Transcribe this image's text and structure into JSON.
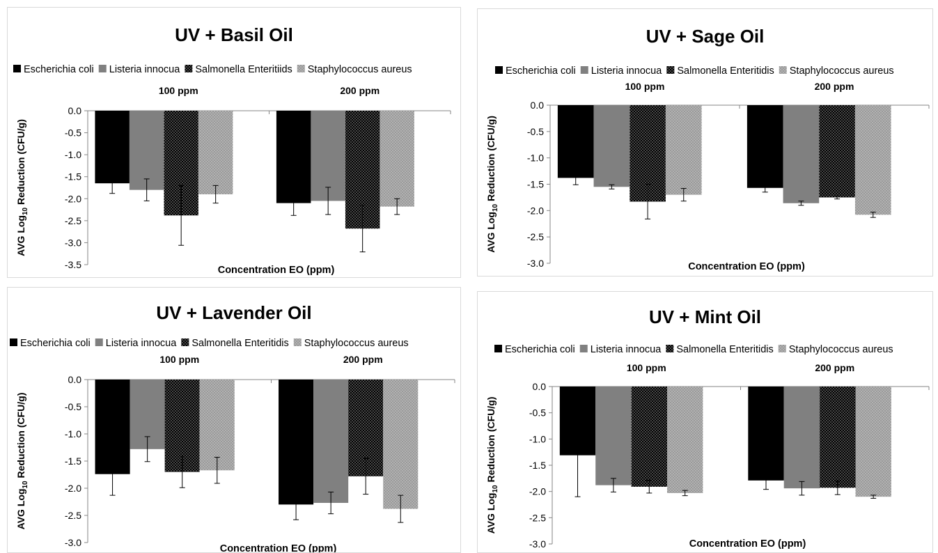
{
  "colors": {
    "escherichia": "#000000",
    "listeria": "#808080",
    "salmonella_pattern": "black background with white dots",
    "staphylococcus_pattern": "grey background with light dots",
    "axis": "#868686"
  },
  "chart_data": [
    {
      "type": "bar",
      "title": "UV + Basil Oil",
      "xlabel": "Concentration EO (ppm)",
      "ylabel_pre": "AVG Log",
      "ylabel_sub": "10",
      "ylabel_post": " Reduction (CFU/g)",
      "categories": [
        "100 ppm",
        "200 ppm"
      ],
      "ylim": [
        -3.5,
        0
      ],
      "ticks": [
        "0.0",
        "-0.5",
        "-1.0",
        "-1.5",
        "-2.0",
        "-2.5",
        "-3.0",
        "-3.5"
      ],
      "legend_position": "top",
      "series": [
        {
          "name": "Escherichia coli",
          "values": [
            -1.65,
            -2.1
          ],
          "errors": [
            0.23,
            0.28
          ]
        },
        {
          "name": "Listeria innocua",
          "values": [
            -1.8,
            -2.05
          ],
          "errors": [
            0.25,
            0.31
          ]
        },
        {
          "name": "Salmonella Enteritiids",
          "values": [
            -2.38,
            -2.68
          ],
          "errors": [
            0.68,
            0.53
          ]
        },
        {
          "name": "Staphylococcus aureus",
          "values": [
            -1.9,
            -2.18
          ],
          "errors": [
            0.2,
            0.18
          ]
        }
      ]
    },
    {
      "type": "bar",
      "title": "UV + Sage Oil",
      "xlabel": "Concentration EO (ppm)",
      "ylabel_pre": "AVG Log",
      "ylabel_sub": "10",
      "ylabel_post": " Reduction (CFU/g)",
      "categories": [
        "100 ppm",
        "200 ppm"
      ],
      "ylim": [
        -3.0,
        0
      ],
      "ticks": [
        "0.0",
        "-0.5",
        "-1.0",
        "-1.5",
        "-2.0",
        "-2.5",
        "-3.0"
      ],
      "legend_position": "top",
      "series": [
        {
          "name": "Escherichia coli",
          "values": [
            -1.38,
            -1.57
          ],
          "errors": [
            0.13,
            0.08
          ]
        },
        {
          "name": "Listeria innocua",
          "values": [
            -1.55,
            -1.86
          ],
          "errors": [
            0.04,
            0.04
          ]
        },
        {
          "name": "Salmonella Enteritidis",
          "values": [
            -1.83,
            -1.75
          ],
          "errors": [
            0.33,
            0.03
          ]
        },
        {
          "name": "Staphylococcus aureus",
          "values": [
            -1.7,
            -2.08
          ],
          "errors": [
            0.12,
            0.05
          ]
        }
      ]
    },
    {
      "type": "bar",
      "title": "UV + Lavender Oil",
      "xlabel": "Concentration EO (ppm)",
      "ylabel_pre": "AVG Log",
      "ylabel_sub": "10",
      "ylabel_post": " Reduction (CFU/g)",
      "categories": [
        "100 ppm",
        "200 ppm"
      ],
      "ylim": [
        -3.0,
        0
      ],
      "ticks": [
        "0.0",
        "-0.5",
        "-1.0",
        "-1.5",
        "-2.0",
        "-2.5",
        "-3.0"
      ],
      "legend_position": "top",
      "series": [
        {
          "name": "Escherichia coli",
          "values": [
            -1.74,
            -2.3
          ],
          "errors": [
            0.39,
            0.28
          ]
        },
        {
          "name": "Listeria innocua",
          "values": [
            -1.28,
            -2.27
          ],
          "errors": [
            0.23,
            0.2
          ]
        },
        {
          "name": "Salmonella Enteritidis",
          "values": [
            -1.7,
            -1.78
          ],
          "errors": [
            0.29,
            0.33
          ]
        },
        {
          "name": "Staphylococcus aureus",
          "values": [
            -1.67,
            -2.38
          ],
          "errors": [
            0.24,
            0.25
          ]
        }
      ]
    },
    {
      "type": "bar",
      "title": "UV + Mint Oil",
      "xlabel": "Concentration EO (ppm)",
      "ylabel_pre": "AVG Log",
      "ylabel_sub": "10",
      "ylabel_post": " Reduction (CFU/g)",
      "categories": [
        "100 ppm",
        "200 ppm"
      ],
      "ylim": [
        -3.0,
        0
      ],
      "ticks": [
        "0.0",
        "-0.5",
        "-1.0",
        "-1.5",
        "-2.0",
        "-2.5",
        "-3.0"
      ],
      "legend_position": "top",
      "series": [
        {
          "name": "Escherichia coli",
          "values": [
            -1.31,
            -1.79
          ],
          "errors": [
            0.79,
            0.17
          ]
        },
        {
          "name": "Listeria innocua",
          "values": [
            -1.88,
            -1.94
          ],
          "errors": [
            0.13,
            0.13
          ]
        },
        {
          "name": "Salmonella Enteritidis",
          "values": [
            -1.91,
            -1.93
          ],
          "errors": [
            0.12,
            0.13
          ]
        },
        {
          "name": "Staphylococcus aureus",
          "values": [
            -2.03,
            -2.1
          ],
          "errors": [
            0.05,
            0.03
          ]
        }
      ]
    }
  ]
}
